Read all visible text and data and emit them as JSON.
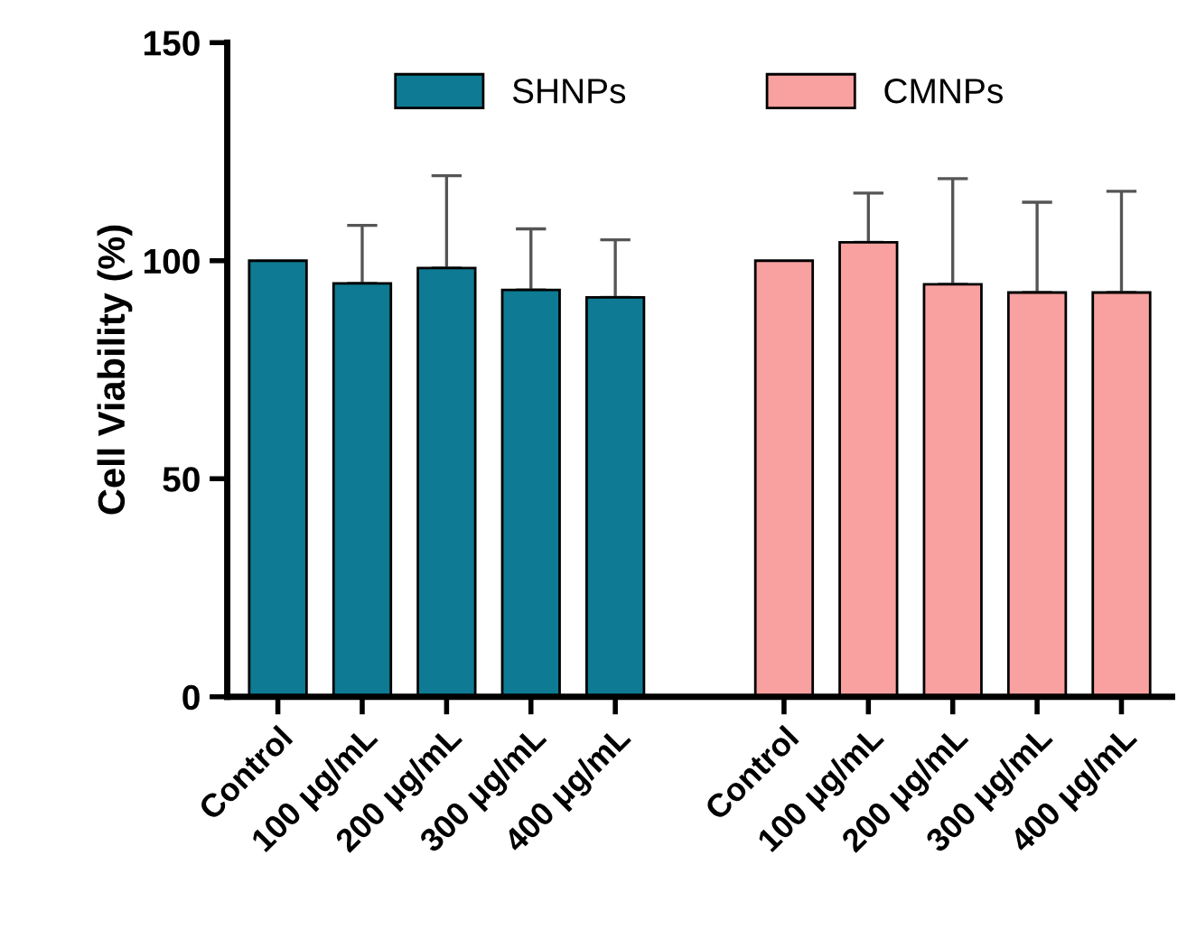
{
  "chart_data": {
    "type": "bar",
    "ylabel": "Cell Viability (%)",
    "categories": [
      "Control",
      "100 μg/mL",
      "200 μg/mL",
      "300 μg/mL",
      "400 μg/mL",
      null,
      "Control",
      "100 μg/mL",
      "200 μg/mL",
      "300 μg/mL",
      "400 μg/mL"
    ],
    "series": [
      {
        "name": "SHNPs",
        "color": "#0e7a93",
        "values": [
          100,
          94.8,
          98.3,
          93.3,
          91.6,
          null,
          null,
          null,
          null,
          null,
          null
        ],
        "errors": [
          null,
          [
            94.8,
            108.1
          ],
          [
            98.3,
            119.5
          ],
          [
            93.3,
            107.3
          ],
          [
            91.6,
            104.8
          ],
          null,
          null,
          null,
          null,
          null,
          null
        ]
      },
      {
        "name": "CMNPs",
        "color": "#f9a0a0",
        "values": [
          null,
          null,
          null,
          null,
          null,
          null,
          100,
          104.2,
          94.6,
          92.7,
          92.7
        ],
        "errors": [
          null,
          null,
          null,
          null,
          null,
          null,
          null,
          [
            104.2,
            115.5
          ],
          [
            94.6,
            118.8
          ],
          [
            92.7,
            113.4
          ],
          [
            92.7,
            115.9
          ]
        ]
      }
    ],
    "ylim": [
      0,
      150
    ],
    "yticks": [
      0,
      50,
      100,
      150
    ],
    "grid": false,
    "legend": "top"
  }
}
